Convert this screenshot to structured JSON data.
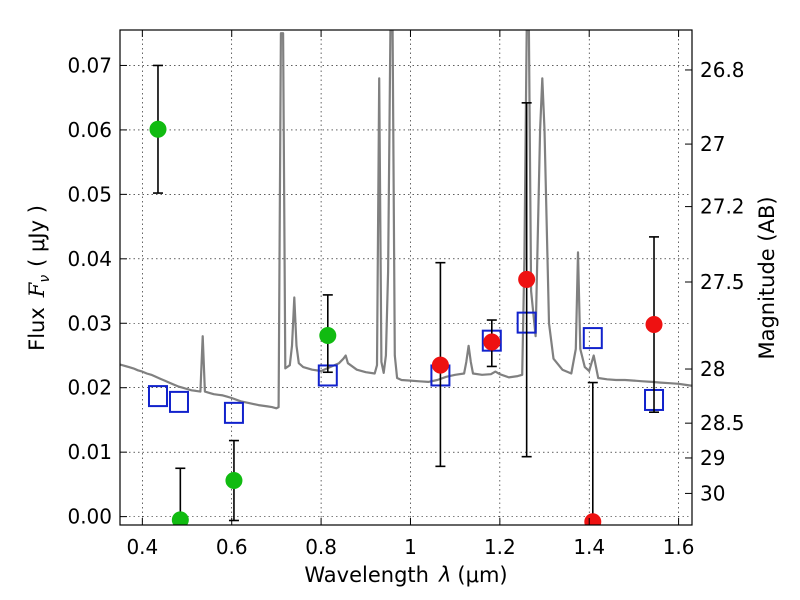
{
  "chart_data": {
    "type": "scatter",
    "title": "",
    "xlabel_text": "Wavelength",
    "xlabel_symbol": "λ",
    "xlabel_unit": "(μm)",
    "ylabel_text": "Flux",
    "ylabel_symbol": "F",
    "ylabel_subscript": "ν",
    "ylabel_unit": "( μJy )",
    "y2label": "Magnitude (AB)",
    "xlim": [
      0.35,
      1.63
    ],
    "ylim": [
      -0.0013,
      0.0755
    ],
    "grid": true,
    "x_ticks": [
      0.4,
      0.6,
      0.8,
      1.0,
      1.2,
      1.4,
      1.6
    ],
    "x_tick_labels": [
      "0.4",
      "0.6",
      "0.8",
      "1",
      "1.2",
      "1.4",
      "1.6"
    ],
    "y_ticks": [
      0.0,
      0.01,
      0.02,
      0.03,
      0.04,
      0.05,
      0.06,
      0.07
    ],
    "y_tick_labels": [
      "0.00",
      "0.01",
      "0.02",
      "0.03",
      "0.04",
      "0.05",
      "0.06",
      "0.07"
    ],
    "y2_ticks": [
      {
        "label": "26.8",
        "flux": 0.0693
      },
      {
        "label": "27",
        "flux": 0.0578
      },
      {
        "label": "27.2",
        "flux": 0.0481
      },
      {
        "label": "27.5",
        "flux": 0.0364
      },
      {
        "label": "28",
        "flux": 0.0229
      },
      {
        "label": "28.5",
        "flux": 0.0145
      },
      {
        "label": "29",
        "flux": 0.0091
      },
      {
        "label": "30",
        "flux": 0.0036
      }
    ],
    "series": [
      {
        "name": "Model spectrum",
        "kind": "line",
        "color": "#808080",
        "points": [
          [
            0.35,
            0.0236
          ],
          [
            0.36,
            0.0234
          ],
          [
            0.37,
            0.0232
          ],
          [
            0.38,
            0.023
          ],
          [
            0.39,
            0.0227
          ],
          [
            0.4,
            0.0225
          ],
          [
            0.41,
            0.0222
          ],
          [
            0.42,
            0.022
          ],
          [
            0.43,
            0.0217
          ],
          [
            0.44,
            0.0214
          ],
          [
            0.45,
            0.0211
          ],
          [
            0.46,
            0.0208
          ],
          [
            0.47,
            0.0205
          ],
          [
            0.48,
            0.0202
          ],
          [
            0.49,
            0.02
          ],
          [
            0.5,
            0.0198
          ],
          [
            0.51,
            0.0196
          ],
          [
            0.52,
            0.0195
          ],
          [
            0.53,
            0.0194
          ],
          [
            0.535,
            0.028
          ],
          [
            0.54,
            0.0194
          ],
          [
            0.55,
            0.0192
          ],
          [
            0.56,
            0.019
          ],
          [
            0.57,
            0.0189
          ],
          [
            0.58,
            0.0188
          ],
          [
            0.59,
            0.0186
          ],
          [
            0.6,
            0.0184
          ],
          [
            0.62,
            0.0179
          ],
          [
            0.64,
            0.0176
          ],
          [
            0.66,
            0.0173
          ],
          [
            0.68,
            0.0171
          ],
          [
            0.69,
            0.017
          ],
          [
            0.7,
            0.0168
          ],
          [
            0.705,
            0.017
          ],
          [
            0.71,
            0.075
          ],
          [
            0.715,
            0.075
          ],
          [
            0.72,
            0.023
          ],
          [
            0.73,
            0.0235
          ],
          [
            0.735,
            0.0265
          ],
          [
            0.74,
            0.034
          ],
          [
            0.745,
            0.0265
          ],
          [
            0.75,
            0.0238
          ],
          [
            0.76,
            0.0232
          ],
          [
            0.78,
            0.0228
          ],
          [
            0.8,
            0.0226
          ],
          [
            0.82,
            0.0232
          ],
          [
            0.84,
            0.0238
          ],
          [
            0.85,
            0.0245
          ],
          [
            0.855,
            0.025
          ],
          [
            0.86,
            0.0238
          ],
          [
            0.88,
            0.0228
          ],
          [
            0.9,
            0.0224
          ],
          [
            0.92,
            0.0222
          ],
          [
            0.925,
            0.0235
          ],
          [
            0.93,
            0.068
          ],
          [
            0.935,
            0.024
          ],
          [
            0.94,
            0.0223
          ],
          [
            0.945,
            0.025
          ],
          [
            0.95,
            0.038
          ],
          [
            0.955,
            0.0755
          ],
          [
            0.96,
            0.0755
          ],
          [
            0.965,
            0.025
          ],
          [
            0.97,
            0.0215
          ],
          [
            0.98,
            0.0212
          ],
          [
            1.0,
            0.0211
          ],
          [
            1.02,
            0.021
          ],
          [
            1.04,
            0.0209
          ],
          [
            1.06,
            0.0212
          ],
          [
            1.08,
            0.0217
          ],
          [
            1.1,
            0.022
          ],
          [
            1.12,
            0.0222
          ],
          [
            1.125,
            0.024
          ],
          [
            1.13,
            0.0265
          ],
          [
            1.135,
            0.024
          ],
          [
            1.14,
            0.0222
          ],
          [
            1.16,
            0.022
          ],
          [
            1.18,
            0.0221
          ],
          [
            1.19,
            0.0225
          ],
          [
            1.2,
            0.0221
          ],
          [
            1.22,
            0.0216
          ],
          [
            1.24,
            0.0218
          ],
          [
            1.25,
            0.022
          ],
          [
            1.255,
            0.04
          ],
          [
            1.26,
            0.0755
          ],
          [
            1.265,
            0.0755
          ],
          [
            1.27,
            0.035
          ],
          [
            1.28,
            0.028
          ],
          [
            1.29,
            0.06
          ],
          [
            1.295,
            0.068
          ],
          [
            1.3,
            0.06
          ],
          [
            1.31,
            0.03
          ],
          [
            1.32,
            0.0245
          ],
          [
            1.34,
            0.0228
          ],
          [
            1.36,
            0.0222
          ],
          [
            1.37,
            0.026
          ],
          [
            1.375,
            0.041
          ],
          [
            1.38,
            0.026
          ],
          [
            1.39,
            0.0232
          ],
          [
            1.4,
            0.0226
          ],
          [
            1.41,
            0.025
          ],
          [
            1.42,
            0.0215
          ],
          [
            1.44,
            0.0213
          ],
          [
            1.46,
            0.0212
          ],
          [
            1.48,
            0.0212
          ],
          [
            1.5,
            0.0211
          ],
          [
            1.52,
            0.021
          ],
          [
            1.54,
            0.0209
          ],
          [
            1.56,
            0.0208
          ],
          [
            1.58,
            0.0207
          ],
          [
            1.6,
            0.0206
          ],
          [
            1.62,
            0.0204
          ],
          [
            1.63,
            0.0203
          ]
        ]
      },
      {
        "name": "Green detections",
        "kind": "errorbar",
        "color": "#11bb11",
        "marker": "circle",
        "points": [
          {
            "x": 0.435,
            "y": 0.0601,
            "ylo": 0.0502,
            "yhi": 0.07
          },
          {
            "x": 0.485,
            "y": -0.0005,
            "ylo": -0.001,
            "yhi": 0.0075
          },
          {
            "x": 0.605,
            "y": 0.0056,
            "ylo": -0.0006,
            "yhi": 0.0118
          },
          {
            "x": 0.815,
            "y": 0.0281,
            "ylo": 0.0224,
            "yhi": 0.0344
          }
        ]
      },
      {
        "name": "Red detections",
        "kind": "errorbar",
        "color": "#ee1111",
        "marker": "circle",
        "points": [
          {
            "x": 1.067,
            "y": 0.0235,
            "ylo": 0.0078,
            "yhi": 0.0394
          },
          {
            "x": 1.182,
            "y": 0.0271,
            "ylo": 0.0233,
            "yhi": 0.0305
          },
          {
            "x": 1.26,
            "y": 0.0368,
            "ylo": 0.0093,
            "yhi": 0.0642
          },
          {
            "x": 1.408,
            "y": -0.0008,
            "ylo": -0.001,
            "yhi": 0.0208
          },
          {
            "x": 1.545,
            "y": 0.0298,
            "ylo": 0.0162,
            "yhi": 0.0434
          }
        ]
      },
      {
        "name": "Model band fluxes",
        "kind": "scatter",
        "color": "#1122cc",
        "marker": "open-square",
        "points": [
          {
            "x": 0.435,
            "y": 0.0187
          },
          {
            "x": 0.482,
            "y": 0.0178
          },
          {
            "x": 0.605,
            "y": 0.0161
          },
          {
            "x": 0.815,
            "y": 0.0219
          },
          {
            "x": 1.067,
            "y": 0.0219
          },
          {
            "x": 1.182,
            "y": 0.0273
          },
          {
            "x": 1.26,
            "y": 0.0301
          },
          {
            "x": 1.408,
            "y": 0.0277
          },
          {
            "x": 1.545,
            "y": 0.0181
          }
        ]
      }
    ]
  }
}
